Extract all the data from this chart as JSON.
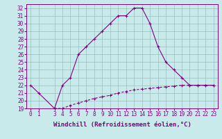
{
  "xlabel": "Windchill (Refroidissement éolien,°C)",
  "xlim": [
    -0.5,
    23.5
  ],
  "ylim": [
    19,
    32.5
  ],
  "yticks": [
    19,
    20,
    21,
    22,
    23,
    24,
    25,
    26,
    27,
    28,
    29,
    30,
    31,
    32
  ],
  "xticks": [
    0,
    1,
    3,
    4,
    5,
    6,
    7,
    8,
    9,
    10,
    11,
    12,
    13,
    14,
    15,
    16,
    17,
    18,
    19,
    20,
    21,
    22,
    23
  ],
  "main_x": [
    0,
    1,
    3,
    4,
    5,
    6,
    7,
    8,
    9,
    10,
    11,
    12,
    13,
    14,
    15,
    16,
    17,
    18,
    19,
    20,
    21,
    22,
    23
  ],
  "main_y": [
    22,
    21,
    19,
    22,
    23,
    26,
    27,
    28,
    29,
    30,
    31,
    31,
    32,
    32,
    30,
    27,
    25,
    24,
    23,
    22,
    22,
    22,
    22
  ],
  "ref_x": [
    3,
    4,
    5,
    6,
    7,
    8,
    9,
    10,
    11,
    12,
    13,
    14,
    15,
    16,
    17,
    18,
    19,
    20,
    21,
    22,
    23
  ],
  "ref_y": [
    19,
    19,
    19.4,
    19.7,
    20.0,
    20.3,
    20.5,
    20.7,
    21.0,
    21.2,
    21.4,
    21.5,
    21.6,
    21.7,
    21.8,
    21.9,
    22.0,
    22.0,
    22.0,
    22.0,
    22.0
  ],
  "line_color": "#800080",
  "bg_color": "#c8eaea",
  "grid_color": "#9bbfbf",
  "xlabel_fontsize": 6.5,
  "tick_fontsize": 5.5
}
